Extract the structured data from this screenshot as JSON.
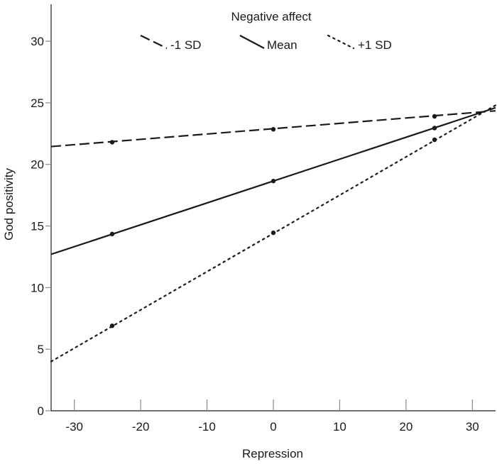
{
  "chart_data": {
    "type": "line",
    "title": "",
    "xlabel": "Repression",
    "ylabel": "God positivity",
    "xlim": [
      -33.5,
      33.5
    ],
    "ylim": [
      0,
      33
    ],
    "xticks": [
      -30,
      -20,
      -10,
      0,
      10,
      20,
      30
    ],
    "yticks": [
      0,
      5,
      10,
      15,
      20,
      25,
      30
    ],
    "xtick_labels": [
      "-30",
      "-20",
      "-10",
      "0",
      "10",
      "20",
      "30"
    ],
    "ytick_labels": [
      "0",
      "5",
      "10",
      "15",
      "20",
      "25",
      "30"
    ],
    "grid": false,
    "legend": {
      "title": "Negative affect",
      "position": "top-center",
      "entries": [
        "-1 SD",
        "Mean",
        "+1 SD"
      ]
    },
    "series": [
      {
        "name": "-1 SD",
        "style": "dashed",
        "line": [
          [
            -33.5,
            21.45
          ],
          [
            33.5,
            24.35
          ]
        ],
        "points": [
          [
            -24.3,
            21.8
          ],
          [
            0,
            22.85
          ],
          [
            24.3,
            23.9
          ]
        ]
      },
      {
        "name": "Mean",
        "style": "solid",
        "line": [
          [
            -33.5,
            12.7
          ],
          [
            33.5,
            24.6
          ]
        ],
        "points": [
          [
            -24.3,
            14.35
          ],
          [
            0,
            18.65
          ],
          [
            24.3,
            22.95
          ]
        ]
      },
      {
        "name": "+1 SD",
        "style": "dotted",
        "line": [
          [
            -33.5,
            4.0
          ],
          [
            33.5,
            24.8
          ]
        ],
        "points": [
          [
            -24.3,
            6.9
          ],
          [
            0,
            14.45
          ],
          [
            24.3,
            22.0
          ]
        ]
      }
    ],
    "colors": {
      "line": "#1a1a1a",
      "axis": "#1a1a1a",
      "tick": "#888888"
    }
  }
}
